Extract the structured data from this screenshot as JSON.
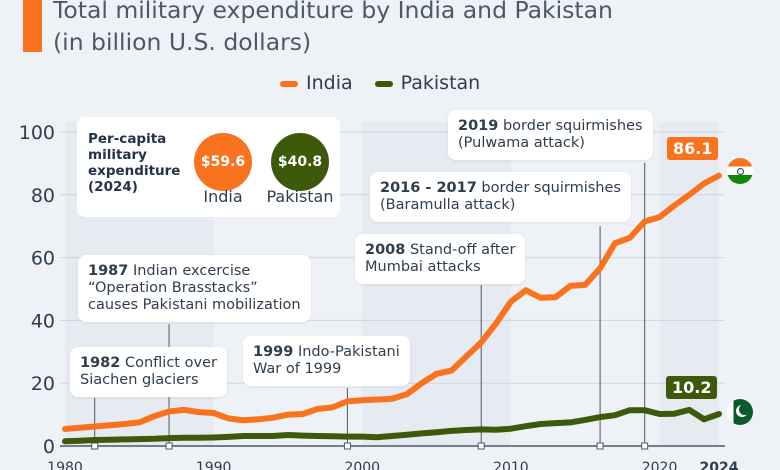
{
  "title_line1": "Total military expenditure by India and Pakistan",
  "title_line2": "(in billion U.S. dollars)",
  "colors": {
    "india": "#f9731f",
    "pakistan": "#3d5a0a",
    "background": "#eef2f6"
  },
  "legend": [
    {
      "label": "India"
    },
    {
      "label": "Pakistan"
    }
  ],
  "per_capita": {
    "title": "Per-capita military expenditure (2024)",
    "india_value": "$59.6",
    "india_label": "India",
    "pakistan_value": "$40.8",
    "pakistan_label": "Pakistan"
  },
  "annotations": [
    {
      "year": 1982,
      "bold": "1982",
      "text": " Conflict over",
      "text2": "Siachen glaciers"
    },
    {
      "year": 1987,
      "bold": "1987",
      "text": " Indian excercise",
      "text2": "“Operation Brasstacks”",
      "text3": "causes Pakistani mobilization"
    },
    {
      "year": 1999,
      "bold": "1999",
      "text": " Indo-Pakistani",
      "text2": "War of 1999"
    },
    {
      "year": 2008,
      "bold": "2008",
      "text": " Stand-off after",
      "text2": "Mumbai attacks"
    },
    {
      "year": 2016,
      "bold": "2016 - 2017",
      "text": " border squirmishes",
      "text2": "(Baramulla attack)"
    },
    {
      "year": 2019,
      "bold": "2019",
      "text": " border squirmishes",
      "text2": "(Pulwama attack)"
    }
  ],
  "end_labels": {
    "india": "86.1",
    "pakistan": "10.2"
  },
  "flags": {
    "india": "india-flag-icon",
    "pakistan": "pakistan-flag-icon"
  },
  "chart_data": {
    "type": "line",
    "title": "Total military expenditure by India and Pakistan (in billion U.S. dollars)",
    "x": [
      1980,
      1981,
      1982,
      1983,
      1984,
      1985,
      1986,
      1987,
      1988,
      1989,
      1990,
      1991,
      1992,
      1993,
      1994,
      1995,
      1996,
      1997,
      1998,
      1999,
      2000,
      2001,
      2002,
      2003,
      2004,
      2005,
      2006,
      2007,
      2008,
      2009,
      2010,
      2011,
      2012,
      2013,
      2014,
      2015,
      2016,
      2017,
      2018,
      2019,
      2020,
      2021,
      2022,
      2023,
      2024
    ],
    "series": [
      {
        "name": "India",
        "values": [
          5.4,
          5.8,
          6.2,
          6.6,
          7.0,
          7.5,
          9.5,
          11.0,
          11.5,
          10.8,
          10.5,
          8.8,
          8.2,
          8.5,
          9.0,
          10.0,
          10.2,
          11.8,
          12.3,
          14.2,
          14.6,
          14.8,
          15.0,
          16.5,
          20.0,
          23.0,
          24.0,
          28.5,
          33.0,
          39.0,
          46.0,
          49.6,
          47.2,
          47.4,
          51.0,
          51.3,
          56.6,
          64.6,
          66.3,
          71.5,
          72.9,
          76.6,
          80.0,
          83.6,
          86.1
        ]
      },
      {
        "name": "Pakistan",
        "values": [
          1.5,
          1.7,
          1.9,
          2.0,
          2.1,
          2.2,
          2.3,
          2.5,
          2.6,
          2.6,
          2.7,
          2.9,
          3.2,
          3.2,
          3.2,
          3.5,
          3.3,
          3.2,
          3.1,
          3.0,
          3.0,
          2.8,
          3.2,
          3.6,
          4.0,
          4.4,
          4.8,
          5.1,
          5.3,
          5.2,
          5.5,
          6.3,
          7.0,
          7.3,
          7.5,
          8.3,
          9.2,
          9.8,
          11.4,
          11.4,
          10.2,
          10.3,
          11.5,
          8.5,
          10.2
        ]
      }
    ],
    "xticks": [
      "1980",
      "1990",
      "2000",
      "2010",
      "2020",
      "2024"
    ],
    "yticks": [
      "0",
      "20",
      "40",
      "60",
      "80",
      "100"
    ],
    "ylim": [
      0,
      100
    ],
    "xlim": [
      1980,
      2024
    ],
    "grid": true,
    "legend_position": "top"
  }
}
